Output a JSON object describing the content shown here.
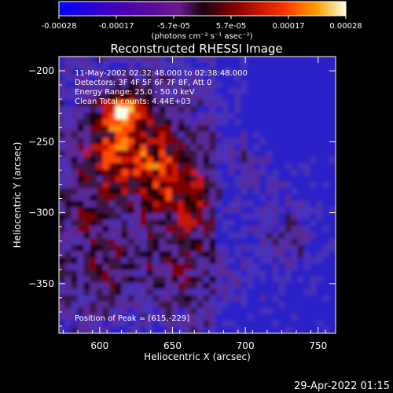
{
  "chart_data": {
    "type": "heatmap",
    "title": "Reconstructed RHESSI Image",
    "xlabel": "Heliocentric X (arcsec)",
    "ylabel": "Heliocentric Y (arcsec)",
    "xlim": [
      572,
      762
    ],
    "ylim": [
      -385,
      -190
    ],
    "xticks": [
      600,
      650,
      700,
      750
    ],
    "yticks": [
      -200,
      -250,
      -300,
      -350
    ],
    "colorbar": {
      "range": [
        -0.00028,
        0.00028
      ],
      "ticks": [
        "-0.00028",
        "-0.00017",
        "-5.7e-05",
        "5.7e-05",
        "0.00017",
        "0.00028"
      ],
      "label": "(photons cm⁻² s⁻¹ asec⁻²)"
    },
    "annotations": [
      "11-May-2002 02:32:48.000 to 02:38:48.000",
      "Detectors: 3F 4F 5F 6F 7F 8F, Att 0",
      "Energy Range: 25.0 - 50.0 keV",
      "Clean    Total counts: 4.44E+03"
    ],
    "peak_label": "Position of Peak = [615,-229]",
    "peak": [
      615,
      -229
    ]
  },
  "footer": {
    "timestamp": "29-Apr-2022 01:15"
  }
}
